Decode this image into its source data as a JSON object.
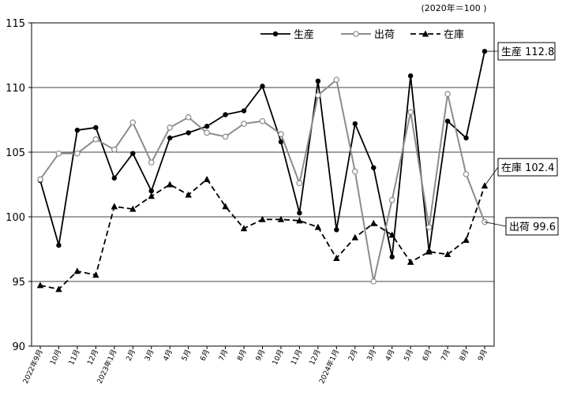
{
  "chart_data": {
    "type": "line",
    "unit_note": "(2020年＝100 )",
    "ylim": [
      90,
      115
    ],
    "yticks": [
      90,
      95,
      100,
      105,
      110,
      115
    ],
    "gridlines": [
      95,
      100,
      105,
      110
    ],
    "categories": [
      "2022年9月",
      "10月",
      "11月",
      "12月",
      "2023年1月",
      "2月",
      "3月",
      "4月",
      "5月",
      "6月",
      "7月",
      "8月",
      "9月",
      "10月",
      "11月",
      "12月",
      "2024年1月",
      "2月",
      "3月",
      "4月",
      "5月",
      "6月",
      "7月",
      "8月",
      "9月"
    ],
    "legend_position": "top-right",
    "series": [
      {
        "name": "生産",
        "key": "production",
        "color": "#000000",
        "dash": "solid",
        "marker": "filled-circle",
        "values": [
          102.8,
          97.8,
          106.7,
          106.9,
          103.0,
          104.9,
          102.0,
          106.1,
          106.5,
          107.0,
          107.9,
          108.2,
          110.1,
          105.8,
          100.3,
          110.5,
          99.0,
          107.2,
          103.8,
          96.9,
          110.9,
          97.3,
          107.4,
          106.1,
          112.8
        ],
        "callout": {
          "name": "生産",
          "value": "112.8"
        }
      },
      {
        "name": "出荷",
        "key": "shipment",
        "color": "#8c8c8c",
        "dash": "solid",
        "marker": "open-circle",
        "values": [
          102.9,
          104.9,
          104.9,
          106.0,
          105.2,
          107.3,
          104.2,
          106.9,
          107.7,
          106.5,
          106.2,
          107.2,
          107.4,
          106.4,
          102.6,
          109.4,
          110.6,
          103.5,
          95.0,
          101.3,
          108.1,
          99.2,
          109.5,
          103.3,
          99.6
        ],
        "callout": {
          "name": "出荷",
          "value": "99.6"
        }
      },
      {
        "name": "在庫",
        "key": "inventory",
        "color": "#000000",
        "dash": "dashed",
        "marker": "filled-triangle",
        "values": [
          94.7,
          94.4,
          95.8,
          95.5,
          100.8,
          100.6,
          101.6,
          102.5,
          101.7,
          102.9,
          100.8,
          99.1,
          99.8,
          99.8,
          99.7,
          99.2,
          96.8,
          98.4,
          99.5,
          98.6,
          96.5,
          97.3,
          97.1,
          98.2,
          102.4
        ],
        "callout": {
          "name": "在庫",
          "value": "102.4"
        }
      }
    ]
  }
}
